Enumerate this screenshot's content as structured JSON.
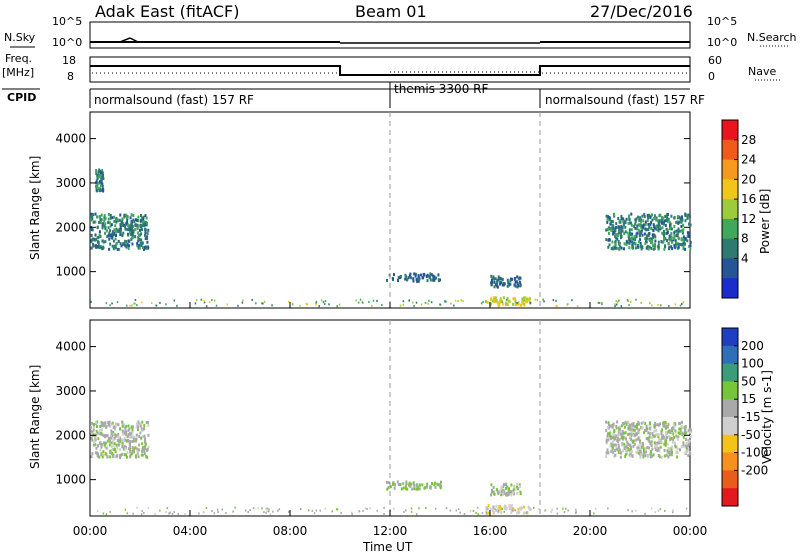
{
  "header": {
    "station": "Adak East (fitACF)",
    "beam": "Beam 01",
    "date": "27/Dec/2016"
  },
  "side_labels": {
    "nsky": "N.Sky",
    "freq": "Freq.",
    "freq_unit": "[MHz]",
    "cpid": "CPID",
    "nsearch": "N.Search",
    "nave": "Nave",
    "nsky_ticks": [
      "10^5",
      "10^0"
    ],
    "nsearch_ticks": [
      "10^5",
      "10^0"
    ],
    "freq_ticks": [
      "18",
      "8"
    ],
    "nave_ticks": [
      "60",
      "0"
    ]
  },
  "cpid_segments": [
    {
      "label": "normalsound (fast) 157 RF",
      "start_h": 0,
      "end_h": 12
    },
    {
      "label": "themis 3300 RF",
      "start_h": 12,
      "end_h": 18
    },
    {
      "label": "normalsound (fast) 157 RF",
      "start_h": 18,
      "end_h": 24
    }
  ],
  "power_colorbar": {
    "label": "Power [dB]",
    "ticks": [
      "28",
      "24",
      "20",
      "16",
      "12",
      "8",
      "4"
    ],
    "colors": [
      "#e8141e",
      "#f05a1a",
      "#f59a1e",
      "#f2c51a",
      "#9ccc3c",
      "#3fa85a",
      "#2f7a70",
      "#255596",
      "#1a2ccc"
    ]
  },
  "velocity_colorbar": {
    "label": "Velocity [m s-1]",
    "ticks": [
      "200",
      "100",
      "50",
      "15",
      "-15",
      "-50",
      "-100",
      "-200"
    ],
    "colors": [
      "#1f3fbf",
      "#2f6fb8",
      "#3a9c78",
      "#77c63a",
      "#a9a9a9",
      "#cfcfcf",
      "#f4c21c",
      "#f5921e",
      "#ea5c1c",
      "#e01a1e"
    ]
  },
  "chart_data": [
    {
      "type": "heatmap",
      "panel": "power",
      "ylabel": "Slant Range [km]",
      "yticks": [
        1000,
        2000,
        3000,
        4000
      ],
      "ylim": [
        180,
        4600
      ],
      "xlim_hours": [
        0,
        24
      ],
      "echo_regions": [
        {
          "t0": 0.0,
          "t1": 2.3,
          "r0": 1500,
          "r1": 2300,
          "value_dB": 8
        },
        {
          "t0": 0.2,
          "t1": 0.5,
          "r0": 2800,
          "r1": 3300,
          "value_dB": 8
        },
        {
          "t0": 11.8,
          "t1": 14.0,
          "r0": 780,
          "r1": 950,
          "value_dB": 6
        },
        {
          "t0": 16.0,
          "t1": 17.2,
          "r0": 650,
          "r1": 900,
          "value_dB": 6
        },
        {
          "t0": 15.8,
          "t1": 17.6,
          "r0": 230,
          "r1": 420,
          "value_dB": 18
        },
        {
          "t0": 20.6,
          "t1": 24.0,
          "r0": 1500,
          "r1": 2300,
          "value_dB": 8
        }
      ]
    },
    {
      "type": "heatmap",
      "panel": "velocity",
      "ylabel": "Slant Range [km]",
      "xlabel": "Time UT",
      "yticks": [
        1000,
        2000,
        3000,
        4000
      ],
      "ylim": [
        180,
        4600
      ],
      "xlim_hours": [
        0,
        24
      ],
      "xticks": [
        "00:00",
        "04:00",
        "08:00",
        "12:00",
        "16:00",
        "20:00",
        "00:00"
      ],
      "echo_regions": [
        {
          "t0": 0.0,
          "t1": 2.3,
          "r0": 1500,
          "r1": 2300,
          "value_ms": 0
        },
        {
          "t0": 11.8,
          "t1": 14.0,
          "r0": 780,
          "r1": 950,
          "value_ms": 20
        },
        {
          "t0": 16.0,
          "t1": 17.2,
          "r0": 650,
          "r1": 900,
          "value_ms": 0
        },
        {
          "t0": 15.8,
          "t1": 17.6,
          "r0": 230,
          "r1": 420,
          "value_ms": -40
        },
        {
          "t0": 20.6,
          "t1": 24.0,
          "r0": 1500,
          "r1": 2300,
          "value_ms": 0
        }
      ]
    }
  ]
}
